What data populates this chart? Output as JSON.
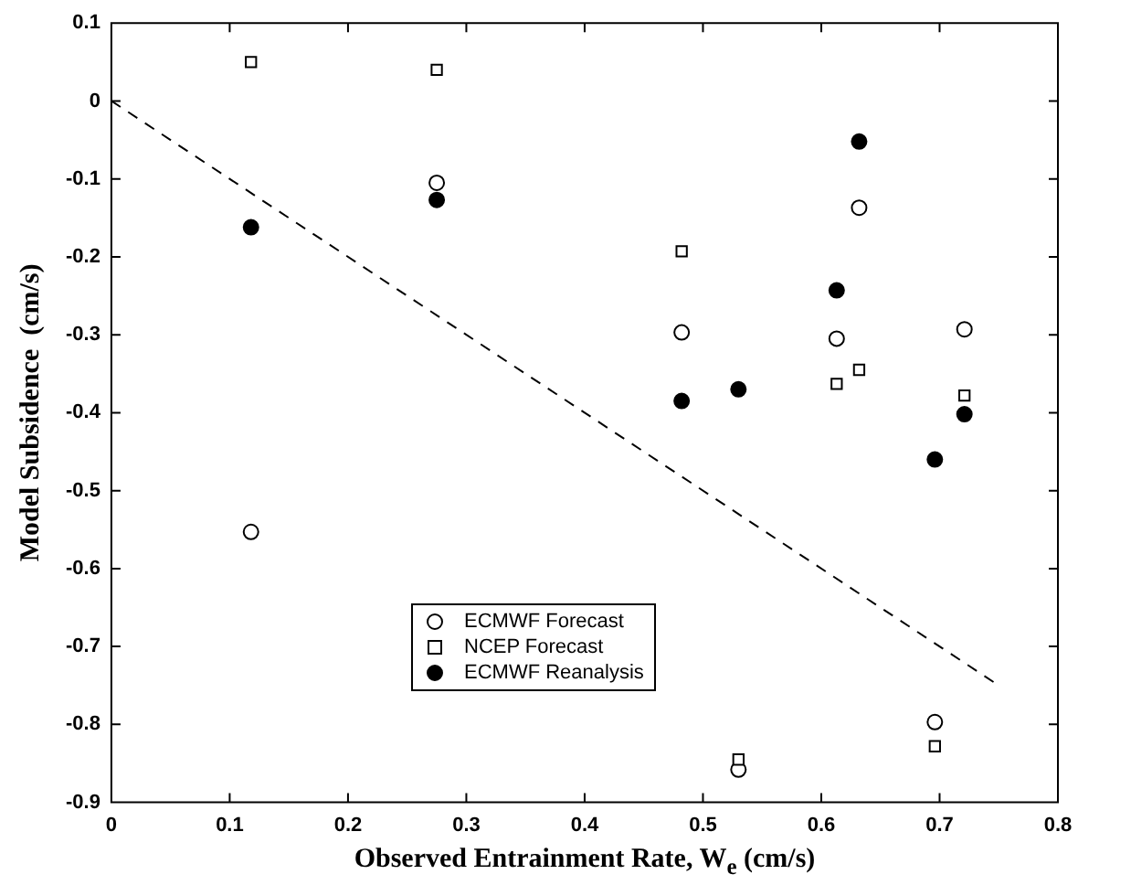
{
  "chart_data": {
    "type": "scatter",
    "xlabel": "Observed Entrainment Rate, W$_{e}$ (cm/s)",
    "ylabel": "Model Subsidence  (cm/s)",
    "x": [
      0.118,
      0.275,
      0.482,
      0.53,
      0.613,
      0.632,
      0.696,
      0.721
    ],
    "series": [
      {
        "name": "ECMWF Forecast",
        "color": "#ffffff",
        "marker": "circle",
        "values": [
          -0.553,
          -0.105,
          -0.297,
          -0.858,
          -0.305,
          -0.137,
          -0.797,
          -0.293
        ]
      },
      {
        "name": "NCEP Forecast",
        "color": "#ffffff",
        "marker": "square",
        "values": [
          0.05,
          0.04,
          -0.193,
          -0.845,
          -0.363,
          -0.345,
          -0.828,
          -0.378
        ]
      },
      {
        "name": "ECMWF Reanalysis",
        "color": "#000000",
        "marker": "circle",
        "values": [
          -0.162,
          -0.127,
          -0.385,
          -0.37,
          -0.243,
          -0.052,
          -0.46,
          -0.402
        ]
      },
      {
        "type": "line",
        "color": "#000000",
        "line_style": "dashed",
        "marker": "none",
        "x": [
          0,
          0.75
        ],
        "values": [
          0,
          -0.75
        ]
      }
    ],
    "xlim": [
      0,
      0.8
    ],
    "xticks": [
      0,
      0.1,
      0.2,
      0.3,
      0.4,
      0.5,
      0.6,
      0.7,
      0.8
    ],
    "ylim": [
      -0.9,
      0.1
    ],
    "yticks": [
      -0.9,
      -0.8,
      -0.7,
      -0.6,
      -0.5,
      -0.4,
      -0.3,
      -0.2,
      -0.1,
      0,
      0.1
    ],
    "grid": false,
    "legend": "bottom"
  }
}
